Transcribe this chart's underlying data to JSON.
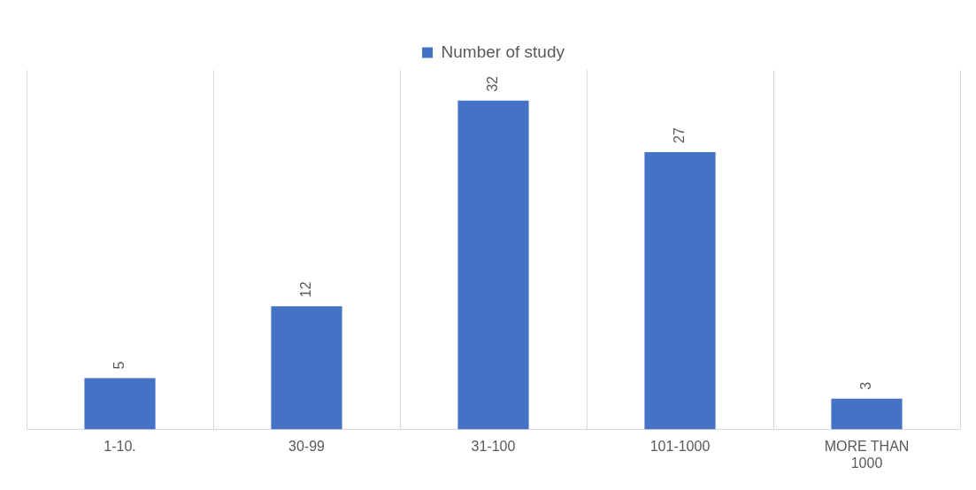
{
  "chart_data": {
    "type": "bar",
    "categories": [
      "1-10.",
      "30-99",
      "31-100",
      "101-1000",
      "MORE THAN 1000"
    ],
    "series": [
      {
        "name": "Number of study",
        "color": "#4472c4",
        "values": [
          5,
          12,
          32,
          27,
          3
        ]
      }
    ],
    "data_labels": true,
    "grid": "x",
    "legend": "top"
  }
}
